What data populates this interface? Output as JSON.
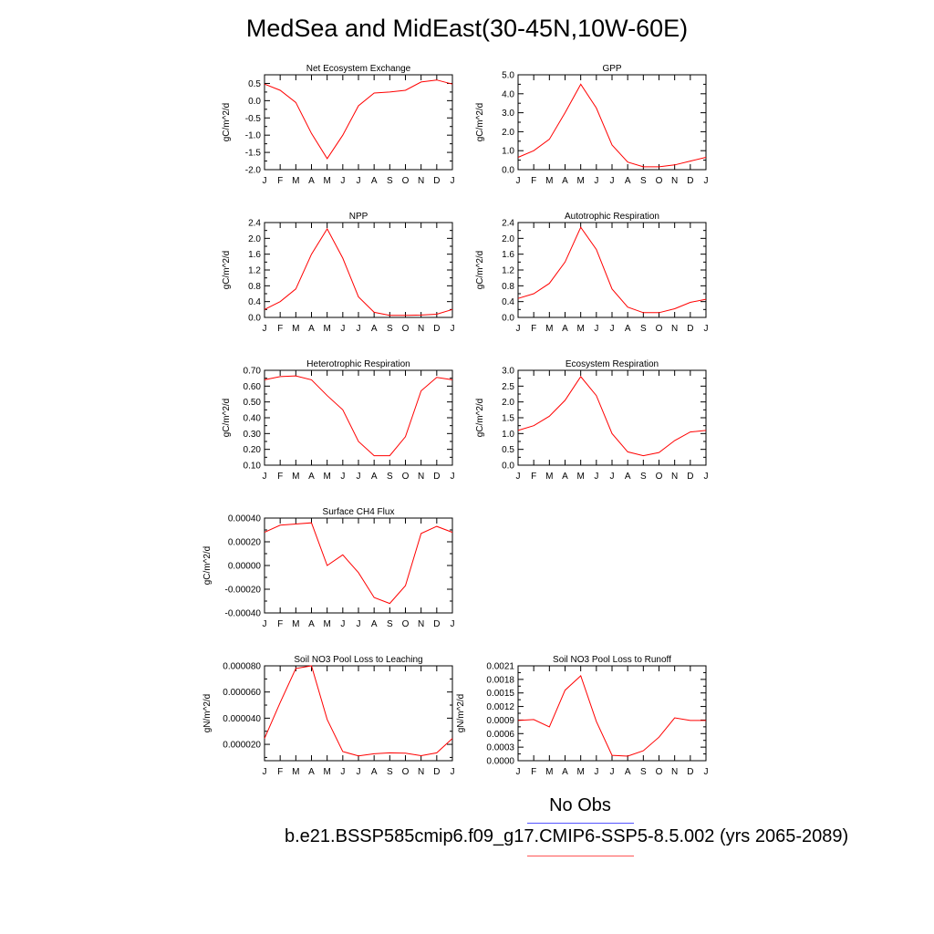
{
  "page": {
    "title": "MedSea and MidEast(30-45N,10W-60E)",
    "legend": {
      "obs_label": "No Obs",
      "obs_color": "#5555ff",
      "model_label": "b.e21.BSSP585cmip6.f09_g17.CMIP6-SSP5-8.5.002 (yrs 2065-2089)",
      "model_color": "#ff5555"
    }
  },
  "chart_data": [
    {
      "type": "line",
      "title": "Net Ecosystem Exchange",
      "ylabel": "gC/m^2/d",
      "categories": [
        "J",
        "F",
        "M",
        "A",
        "M",
        "J",
        "J",
        "A",
        "S",
        "O",
        "N",
        "D",
        "J"
      ],
      "series": [
        {
          "values": [
            0.48,
            0.3,
            -0.05,
            -0.95,
            -1.68,
            -1.0,
            -0.15,
            0.22,
            0.25,
            0.3,
            0.54,
            0.6,
            0.48
          ]
        }
      ],
      "ylim": [
        -2.0,
        0.75
      ],
      "yticks": [
        -2.0,
        -1.5,
        -1.0,
        -0.5,
        0.0,
        0.5
      ],
      "ytick_labels": [
        "-2.0",
        "-1.5",
        "-1.0",
        "-0.5",
        "0.0",
        "0.5"
      ],
      "line_color": "#ff0000"
    },
    {
      "type": "line",
      "title": "GPP",
      "ylabel": "gC/m^2/d",
      "categories": [
        "J",
        "F",
        "M",
        "A",
        "M",
        "J",
        "J",
        "A",
        "S",
        "O",
        "N",
        "D",
        "J"
      ],
      "series": [
        {
          "values": [
            0.65,
            1.0,
            1.6,
            3.0,
            4.5,
            3.25,
            1.3,
            0.4,
            0.15,
            0.15,
            0.25,
            0.45,
            0.65
          ]
        }
      ],
      "ylim": [
        0.0,
        5.0
      ],
      "yticks": [
        0.0,
        1.0,
        2.0,
        3.0,
        4.0,
        5.0
      ],
      "ytick_labels": [
        "0.0",
        "1.0",
        "2.0",
        "3.0",
        "4.0",
        "5.0"
      ],
      "line_color": "#ff0000"
    },
    {
      "type": "line",
      "title": "NPP",
      "ylabel": "gC/m^2/d",
      "categories": [
        "J",
        "F",
        "M",
        "A",
        "M",
        "J",
        "J",
        "A",
        "S",
        "O",
        "N",
        "D",
        "J"
      ],
      "series": [
        {
          "values": [
            0.2,
            0.4,
            0.72,
            1.6,
            2.24,
            1.5,
            0.52,
            0.13,
            0.05,
            0.05,
            0.06,
            0.08,
            0.2
          ]
        }
      ],
      "ylim": [
        0.0,
        2.4
      ],
      "yticks": [
        0.0,
        0.4,
        0.8,
        1.2,
        1.6,
        2.0,
        2.4
      ],
      "ytick_labels": [
        "0.0",
        "0.4",
        "0.8",
        "1.2",
        "1.6",
        "2.0",
        "2.4"
      ],
      "line_color": "#ff0000"
    },
    {
      "type": "line",
      "title": "Autotrophic Respiration",
      "ylabel": "gC/m^2/d",
      "categories": [
        "J",
        "F",
        "M",
        "A",
        "M",
        "J",
        "J",
        "A",
        "S",
        "O",
        "N",
        "D",
        "J"
      ],
      "series": [
        {
          "values": [
            0.48,
            0.6,
            0.86,
            1.4,
            2.28,
            1.72,
            0.72,
            0.26,
            0.12,
            0.12,
            0.22,
            0.38,
            0.46
          ]
        }
      ],
      "ylim": [
        0.0,
        2.4
      ],
      "yticks": [
        0.0,
        0.4,
        0.8,
        1.2,
        1.6,
        2.0,
        2.4
      ],
      "ytick_labels": [
        "0.0",
        "0.4",
        "0.8",
        "1.2",
        "1.6",
        "2.0",
        "2.4"
      ],
      "line_color": "#ff0000"
    },
    {
      "type": "line",
      "title": "Heterotrophic Respiration",
      "ylabel": "gC/m^2/d",
      "categories": [
        "J",
        "F",
        "M",
        "A",
        "M",
        "J",
        "J",
        "A",
        "S",
        "O",
        "N",
        "D",
        "J"
      ],
      "series": [
        {
          "values": [
            0.64,
            0.66,
            0.665,
            0.64,
            0.54,
            0.45,
            0.25,
            0.16,
            0.16,
            0.28,
            0.57,
            0.655,
            0.64
          ]
        }
      ],
      "ylim": [
        0.1,
        0.7
      ],
      "yticks": [
        0.1,
        0.2,
        0.3,
        0.4,
        0.5,
        0.6,
        0.7
      ],
      "ytick_labels": [
        "0.10",
        "0.20",
        "0.30",
        "0.40",
        "0.50",
        "0.60",
        "0.70"
      ],
      "line_color": "#ff0000"
    },
    {
      "type": "line",
      "title": "Ecosystem Respiration",
      "ylabel": "gC/m^2/d",
      "categories": [
        "J",
        "F",
        "M",
        "A",
        "M",
        "J",
        "J",
        "A",
        "S",
        "O",
        "N",
        "D",
        "J"
      ],
      "series": [
        {
          "values": [
            1.1,
            1.25,
            1.55,
            2.05,
            2.8,
            2.2,
            1.0,
            0.42,
            0.3,
            0.4,
            0.78,
            1.05,
            1.1
          ]
        }
      ],
      "ylim": [
        0.0,
        3.0
      ],
      "yticks": [
        0.0,
        0.5,
        1.0,
        1.5,
        2.0,
        2.5,
        3.0
      ],
      "ytick_labels": [
        "0.0",
        "0.5",
        "1.0",
        "1.5",
        "2.0",
        "2.5",
        "3.0"
      ],
      "line_color": "#ff0000"
    },
    {
      "type": "line",
      "title": "Surface CH4 Flux",
      "ylabel": "gC/m^2/d",
      "categories": [
        "J",
        "F",
        "M",
        "A",
        "M",
        "J",
        "J",
        "A",
        "S",
        "O",
        "N",
        "D",
        "J"
      ],
      "series": [
        {
          "values": [
            0.00028,
            0.00034,
            0.00035,
            0.00036,
            0.0,
            9e-05,
            -6e-05,
            -0.00027,
            -0.00032,
            -0.00017,
            0.00027,
            0.00033,
            0.00028
          ]
        }
      ],
      "ylim": [
        -0.0004,
        0.0004
      ],
      "yticks": [
        -0.0004,
        -0.0002,
        0.0,
        0.0002,
        0.0004
      ],
      "ytick_labels": [
        "-0.00040",
        "-0.00020",
        "0.00000",
        "0.00020",
        "0.00040"
      ],
      "line_color": "#ff0000"
    },
    {
      "type": "line",
      "title": "Soil NO3 Pool Loss to Leaching",
      "ylabel": "gN/m^2/d",
      "categories": [
        "J",
        "F",
        "M",
        "A",
        "M",
        "J",
        "J",
        "A",
        "S",
        "O",
        "N",
        "D",
        "J"
      ],
      "series": [
        {
          "values": [
            2.45e-05,
            5.2e-05,
            7.8e-05,
            8e-05,
            3.9e-05,
            1.45e-05,
            1.12e-05,
            1.28e-05,
            1.35e-05,
            1.32e-05,
            1.13e-05,
            1.35e-05,
            2.45e-05
          ]
        }
      ],
      "ylim": [
        7.5e-06,
        8e-05
      ],
      "yticks": [
        2e-05,
        4e-05,
        6e-05,
        8e-05
      ],
      "ytick_labels": [
        "0.000020",
        "0.000040",
        "0.000060",
        "0.000080"
      ],
      "line_color": "#ff0000"
    },
    {
      "type": "line",
      "title": "Soil NO3 Pool Loss to Runoff",
      "ylabel": "gN/m^2/d",
      "categories": [
        "J",
        "F",
        "M",
        "A",
        "M",
        "J",
        "J",
        "A",
        "S",
        "O",
        "N",
        "D",
        "J"
      ],
      "series": [
        {
          "values": [
            0.00089,
            0.00091,
            0.00075,
            0.00156,
            0.00188,
            0.00087,
            0.00012,
            0.0001,
            0.00022,
            0.00052,
            0.00095,
            0.00089,
            0.00089
          ]
        }
      ],
      "ylim": [
        0.0,
        0.0021
      ],
      "yticks": [
        0.0,
        0.0003,
        0.0006,
        0.0009,
        0.0012,
        0.0015,
        0.0018,
        0.0021
      ],
      "ytick_labels": [
        "0.0000",
        "0.0003",
        "0.0006",
        "0.0009",
        "0.0012",
        "0.0015",
        "0.0018",
        "0.0021"
      ],
      "line_color": "#ff0000"
    }
  ]
}
